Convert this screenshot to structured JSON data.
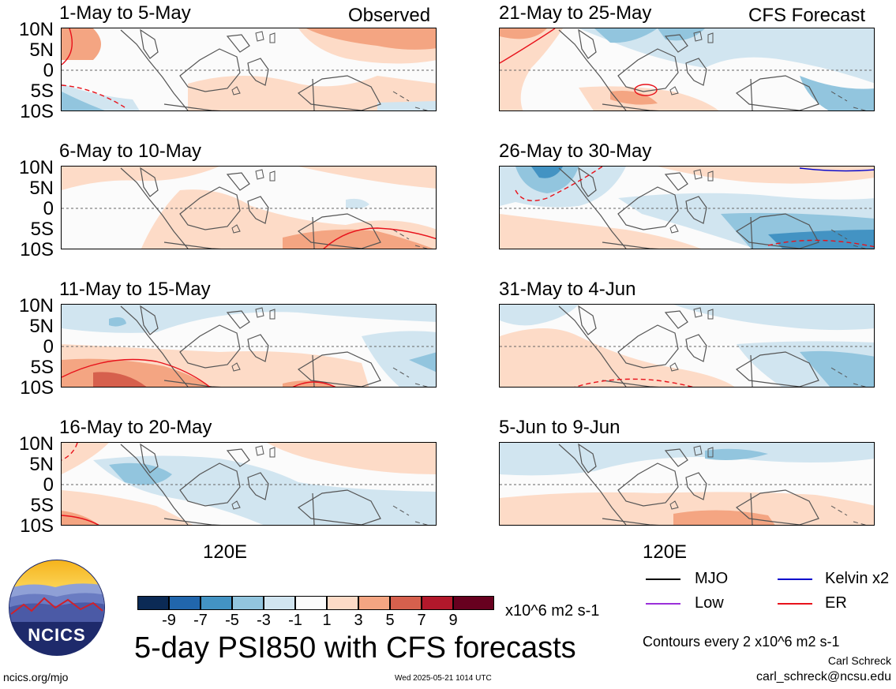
{
  "header": {
    "left_label": "Observed",
    "right_label": "CFS Forecast"
  },
  "lat_ticks": [
    "10N",
    "5N",
    "0",
    "5S",
    "10S"
  ],
  "lon_tick": "120E",
  "panels_left": [
    {
      "title": "1-May to 5-May"
    },
    {
      "title": "6-May to 10-May"
    },
    {
      "title": "11-May to 15-May"
    },
    {
      "title": "16-May to 20-May"
    }
  ],
  "panels_right": [
    {
      "title": "21-May to 25-May"
    },
    {
      "title": "26-May to 30-May"
    },
    {
      "title": "31-May to 4-Jun"
    },
    {
      "title": "5-Jun to 9-Jun"
    }
  ],
  "colorbar": {
    "labels": [
      "-9",
      "-7",
      "-5",
      "-3",
      "-1",
      "1",
      "3",
      "5",
      "7",
      "9"
    ],
    "colors": [
      "#0b2a55",
      "#2166ac",
      "#4393c3",
      "#92c5de",
      "#d1e5f0",
      "#fbfbfb",
      "#fddbc7",
      "#f4a582",
      "#d6604d",
      "#b2182b",
      "#67001f"
    ],
    "units": "x10^6 m2 s-1"
  },
  "legend": [
    {
      "label": "MJO",
      "color": "#000000"
    },
    {
      "label": "Kelvin x2",
      "color": "#0000cc"
    },
    {
      "label": "Low",
      "color": "#9b30d9"
    },
    {
      "label": "ER",
      "color": "#e8121b"
    }
  ],
  "contour_note": "Contours every 2 x10^6 m2 s-1",
  "main_title": "5-day PSI850 with CFS forecasts",
  "logo": {
    "text": "NCICS"
  },
  "footer": {
    "url": "ncics.org/mjo",
    "timestamp": "Wed 2025-05-21 1014 UTC",
    "author": "Carl Schreck",
    "email": "carl_schreck@ncsu.edu"
  }
}
